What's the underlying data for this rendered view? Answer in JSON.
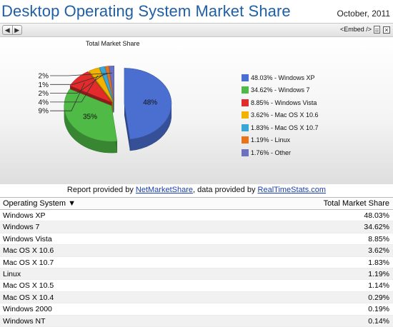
{
  "page": {
    "title": "Desktop Operating System Market Share",
    "date": "October, 2011",
    "embed_label": "<Embed />",
    "report_prefix": "Report provided by ",
    "report_link1": "NetMarketShare",
    "report_middle": ", data provided by ",
    "report_link2": "RealTimeStats.com"
  },
  "table": {
    "col1": "Operating System",
    "col2": "Total Market Share",
    "rows": [
      {
        "name": "Windows XP",
        "value": "48.03%"
      },
      {
        "name": "Windows 7",
        "value": "34.62%"
      },
      {
        "name": "Windows Vista",
        "value": "8.85%"
      },
      {
        "name": "Mac OS X 10.6",
        "value": "3.62%"
      },
      {
        "name": "Mac OS X 10.7",
        "value": "1.83%"
      },
      {
        "name": "Linux",
        "value": "1.19%"
      },
      {
        "name": "Mac OS X 10.5",
        "value": "1.14%"
      },
      {
        "name": "Mac OS X 10.4",
        "value": "0.29%"
      },
      {
        "name": "Windows 2000",
        "value": "0.19%"
      },
      {
        "name": "Windows NT",
        "value": "0.14%"
      }
    ]
  },
  "chart_data": {
    "type": "pie",
    "title": "Total Market Share",
    "slices": [
      {
        "label": "Windows XP",
        "value": 48.03,
        "legend": "48.03% - Windows XP",
        "pct_label": "48%",
        "color": "#4a6fd0"
      },
      {
        "label": "Windows 7",
        "value": 34.62,
        "legend": "34.62% - Windows 7",
        "pct_label": "35%",
        "color": "#4fba45"
      },
      {
        "label": "Windows Vista",
        "value": 8.85,
        "legend": "8.85% - Windows Vista",
        "pct_label": "9%",
        "color": "#e32b2b"
      },
      {
        "label": "Mac OS X 10.6",
        "value": 3.62,
        "legend": "3.62% - Mac OS X 10.6",
        "pct_label": "4%",
        "color": "#f1b300"
      },
      {
        "label": "Mac OS X 10.7",
        "value": 1.83,
        "legend": "1.83% - Mac OS X 10.7",
        "pct_label": "2%",
        "color": "#3aa6d6"
      },
      {
        "label": "Linux",
        "value": 1.19,
        "legend": "1.19% - Linux",
        "pct_label": "1%",
        "color": "#e8731a"
      },
      {
        "label": "Other",
        "value": 1.76,
        "legend": "1.76% - Other",
        "pct_label": "2%",
        "color": "#6a72bf"
      }
    ],
    "legend_position": "right"
  }
}
